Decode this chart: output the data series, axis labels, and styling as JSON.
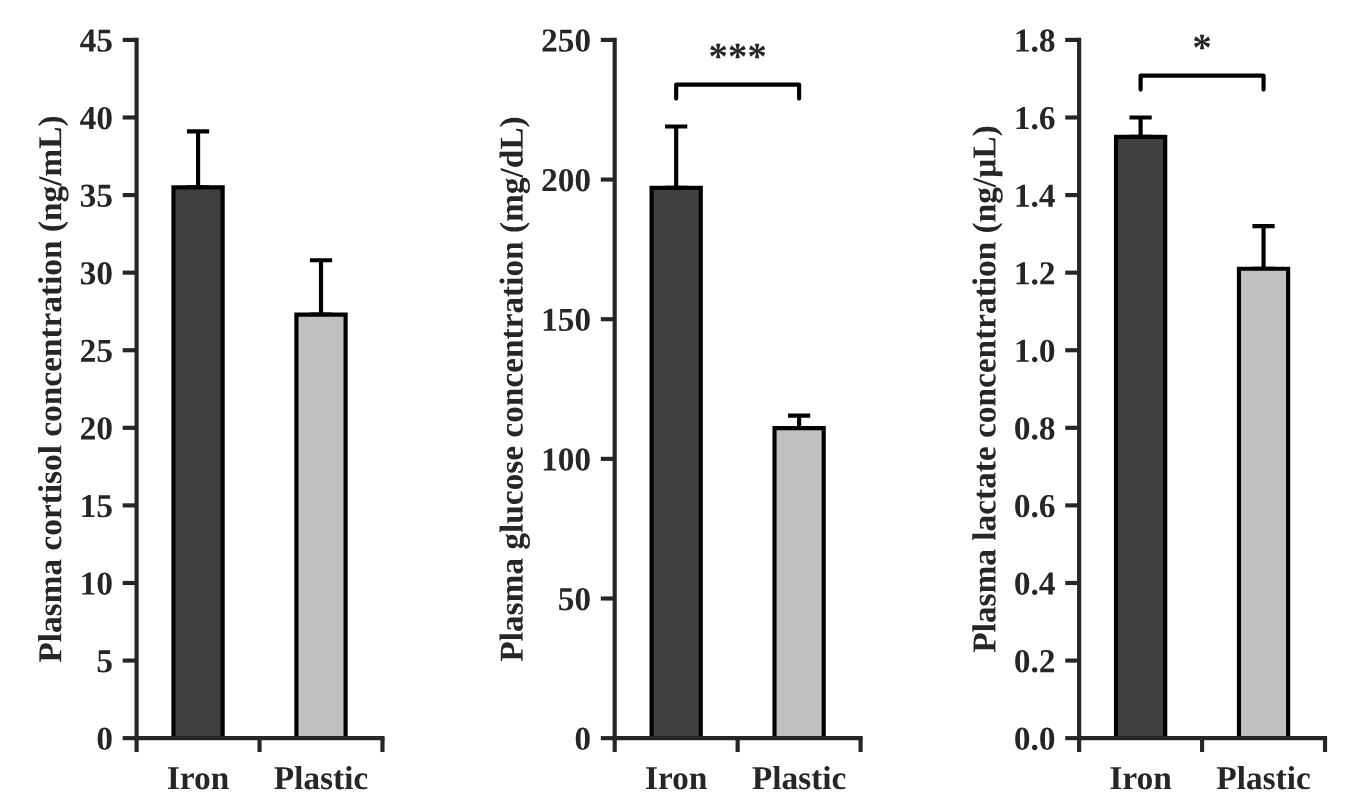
{
  "chart_data": [
    {
      "type": "bar",
      "ylabel": "Plasma cortisol concentration (ng/mL)",
      "categories": [
        "Iron",
        "Plastic"
      ],
      "values": [
        35.5,
        27.3
      ],
      "colors": [
        "#404040",
        "#c0c0c0"
      ],
      "errors": [
        [
          35.5,
          39.1
        ],
        [
          27.3,
          30.8
        ]
      ],
      "ylim": [
        0,
        45
      ],
      "yticks": [
        0,
        5,
        10,
        15,
        20,
        25,
        30,
        35,
        40,
        45
      ],
      "grid": false,
      "legend": false
    },
    {
      "type": "bar",
      "ylabel": "Plasma glucose concentration (mg/dL)",
      "categories": [
        "Iron",
        "Plastic"
      ],
      "values": [
        197,
        111
      ],
      "colors": [
        "#404040",
        "#c0c0c0"
      ],
      "errors": [
        [
          197,
          219
        ],
        [
          111,
          115.5
        ]
      ],
      "ylim": [
        0,
        250
      ],
      "yticks": [
        0,
        50,
        100,
        150,
        200,
        250
      ],
      "annotations": [
        "***"
      ],
      "grid": false,
      "legend": false
    },
    {
      "type": "bar",
      "ylabel": "Plasma lactate concentration (ng/µL)",
      "categories": [
        "Iron",
        "Plastic"
      ],
      "values": [
        1.55,
        1.21
      ],
      "colors": [
        "#404040",
        "#c0c0c0"
      ],
      "errors": [
        [
          1.55,
          1.6
        ],
        [
          1.21,
          1.32
        ]
      ],
      "ylim": [
        0,
        1.8
      ],
      "yticks": [
        {
          "value": 0,
          "label": "0.0"
        },
        0.2,
        0.4,
        0.6,
        0.8,
        {
          "value": 1,
          "label": "1.0"
        },
        1.2,
        1.4,
        1.6,
        1.8
      ],
      "annotations": [
        "*"
      ],
      "grid": false,
      "legend": false
    }
  ]
}
